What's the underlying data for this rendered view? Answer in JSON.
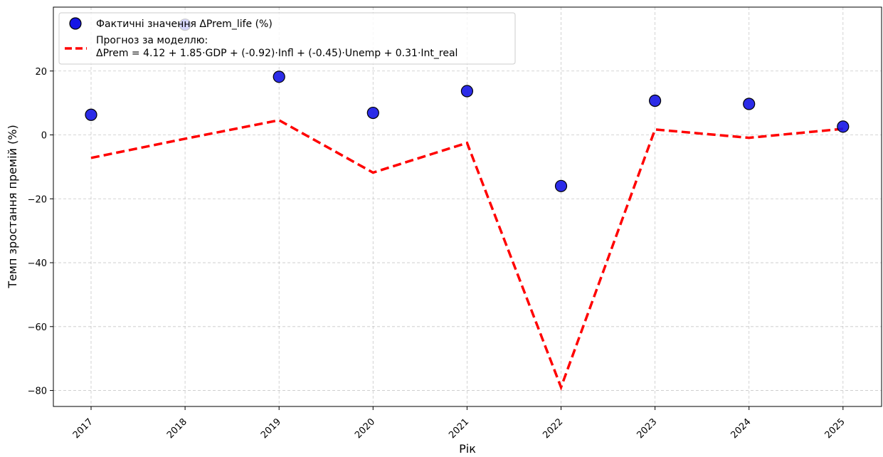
{
  "chart_data": {
    "type": "scatter",
    "title": "",
    "xlabel": "Рік",
    "ylabel": "Темп зростання премій (%)",
    "x": [
      "2017",
      "2018",
      "2019",
      "2020",
      "2021",
      "2022",
      "2023",
      "2024",
      "2025"
    ],
    "ylim": [
      -85,
      40
    ],
    "yticks": [
      20,
      0,
      -20,
      -40,
      -60,
      -80
    ],
    "ytick_labels": [
      "20",
      "0",
      "−20",
      "−40",
      "−60",
      "−80"
    ],
    "grid": true,
    "legend_position": "top-left",
    "series": [
      {
        "name": "Фактичні значення ΔPrem_life (%)",
        "kind": "scatter",
        "color": "#1515e6",
        "values": [
          6.3,
          34.5,
          18.2,
          6.9,
          13.7,
          -16.0,
          10.7,
          9.7,
          2.6
        ]
      },
      {
        "name_line1": "Прогноз за моделлю:",
        "name_line2": "ΔPrem = 4.12 + 1.85·GDP + (-0.92)·Infl + (-0.45)·Unemp + 0.31·Int_real",
        "kind": "line",
        "style": "dashed",
        "color": "#ff0000",
        "values": [
          -7.2,
          -1.2,
          4.6,
          -11.8,
          -2.5,
          -79.0,
          1.7,
          -0.9,
          1.9
        ]
      }
    ]
  }
}
